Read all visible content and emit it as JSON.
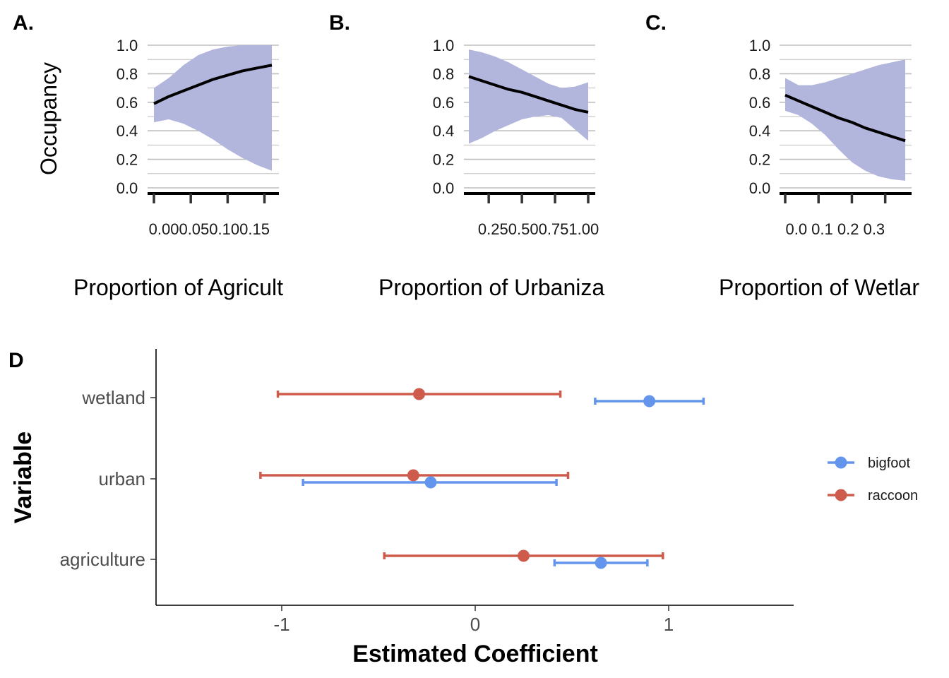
{
  "chart_data": [
    {
      "type": "line",
      "panel_label": "A.",
      "ylabel": "Occupancy",
      "xlabel": "Proportion of Agricult",
      "xlim": [
        0,
        0.16
      ],
      "ylim": [
        0,
        1
      ],
      "x_ticks": [
        "0.00",
        "0.05",
        "0.10",
        "0.15"
      ],
      "y_ticks": [
        "0.0",
        "0.2",
        "0.4",
        "0.6",
        "0.8",
        "1.0"
      ],
      "grid": true,
      "band_color": "#b3b6dc",
      "line_color": "#000000",
      "x": [
        0.0,
        0.02,
        0.04,
        0.06,
        0.08,
        0.1,
        0.12,
        0.14,
        0.16
      ],
      "estimate": [
        0.59,
        0.64,
        0.68,
        0.72,
        0.76,
        0.79,
        0.82,
        0.84,
        0.86
      ],
      "lower": [
        0.46,
        0.48,
        0.45,
        0.4,
        0.34,
        0.27,
        0.21,
        0.16,
        0.12
      ],
      "upper": [
        0.7,
        0.77,
        0.86,
        0.93,
        0.97,
        0.99,
        1.0,
        1.0,
        1.0
      ]
    },
    {
      "type": "line",
      "panel_label": "B.",
      "ylabel": "",
      "xlabel": "Proportion of Urbaniza",
      "xlim": [
        0.1,
        1.0
      ],
      "ylim": [
        0,
        1
      ],
      "x_ticks": [
        "0.25",
        "0.50",
        "0.75",
        "1.00"
      ],
      "y_ticks": [
        "0.0",
        "0.2",
        "0.4",
        "0.6",
        "0.8",
        "1.0"
      ],
      "grid": true,
      "band_color": "#b3b6dc",
      "line_color": "#000000",
      "x": [
        0.1,
        0.2,
        0.3,
        0.4,
        0.5,
        0.6,
        0.7,
        0.8,
        0.9,
        1.0
      ],
      "estimate": [
        0.78,
        0.75,
        0.72,
        0.69,
        0.67,
        0.64,
        0.61,
        0.58,
        0.55,
        0.53
      ],
      "lower": [
        0.31,
        0.35,
        0.4,
        0.44,
        0.48,
        0.5,
        0.51,
        0.49,
        0.41,
        0.33
      ],
      "upper": [
        0.97,
        0.95,
        0.92,
        0.88,
        0.83,
        0.78,
        0.73,
        0.7,
        0.71,
        0.74
      ]
    },
    {
      "type": "line",
      "panel_label": "C.",
      "ylabel": "",
      "xlabel": "Proportion of Wetlar",
      "xlim": [
        0,
        0.36
      ],
      "ylim": [
        0,
        1
      ],
      "x_ticks": [
        "0.0",
        "0.1",
        "0.2",
        "0.3"
      ],
      "y_ticks": [
        "0.0",
        "0.2",
        "0.4",
        "0.6",
        "0.8",
        "1.0"
      ],
      "grid": true,
      "band_color": "#b3b6dc",
      "line_color": "#000000",
      "x": [
        0.0,
        0.04,
        0.08,
        0.12,
        0.16,
        0.2,
        0.24,
        0.28,
        0.32,
        0.36
      ],
      "estimate": [
        0.65,
        0.61,
        0.57,
        0.53,
        0.49,
        0.46,
        0.42,
        0.39,
        0.36,
        0.33
      ],
      "lower": [
        0.54,
        0.51,
        0.45,
        0.37,
        0.27,
        0.18,
        0.12,
        0.08,
        0.06,
        0.05
      ],
      "upper": [
        0.77,
        0.72,
        0.72,
        0.74,
        0.77,
        0.8,
        0.83,
        0.86,
        0.88,
        0.9
      ]
    },
    {
      "type": "scatter",
      "panel_label": "D",
      "xlabel": "Estimated Coefficient",
      "ylabel": "Variable",
      "xlim": [
        -1.65,
        1.65
      ],
      "x_ticks": [
        "-1",
        "0",
        "1"
      ],
      "categories": [
        "wetland",
        "urban",
        "agriculture"
      ],
      "grid": false,
      "legend_position": "right",
      "series": [
        {
          "name": "bigfoot",
          "color": "#6495ed",
          "estimate": [
            0.9,
            -0.23,
            0.65
          ],
          "lower": [
            0.62,
            -0.89,
            0.41
          ],
          "upper": [
            1.18,
            0.42,
            0.89
          ]
        },
        {
          "name": "raccoon",
          "color": "#cd5c4c",
          "estimate": [
            -0.29,
            -0.32,
            0.25
          ],
          "lower": [
            -1.02,
            -1.11,
            -0.47
          ],
          "upper": [
            0.44,
            0.48,
            0.97
          ]
        }
      ]
    }
  ]
}
